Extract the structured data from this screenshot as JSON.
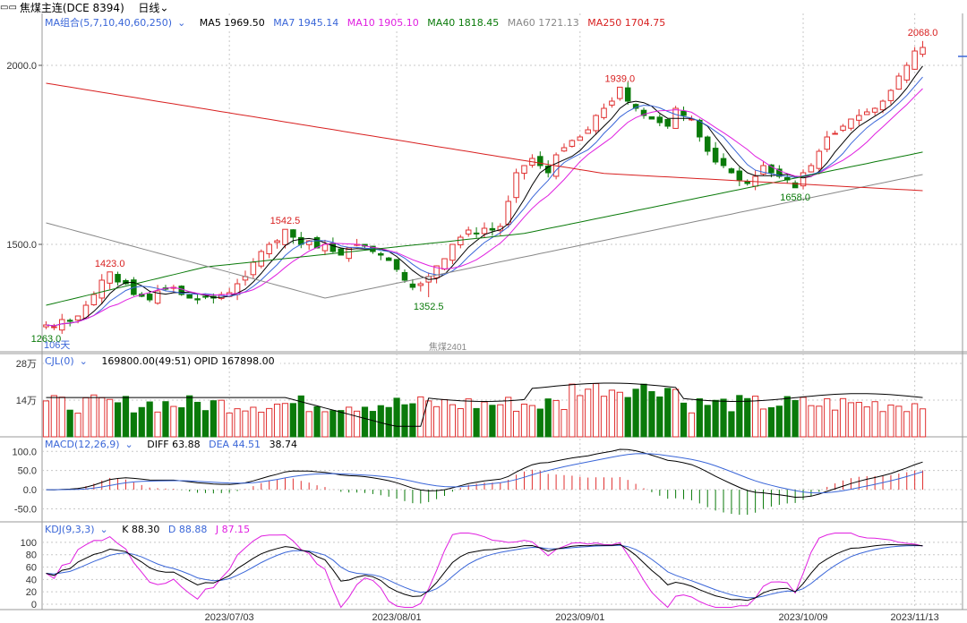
{
  "header": {
    "icon": "link-icon",
    "symbol": "焦煤主连(DCE 8394)",
    "period": "日线"
  },
  "price_panel": {
    "ma_group_label": "MA组合(5,7,10,40,60,250)",
    "ma": [
      {
        "label": "MA5 1969.50",
        "color": "#000000"
      },
      {
        "label": "MA7 1945.14",
        "color": "#3a66d8"
      },
      {
        "label": "MA10 1905.10",
        "color": "#e020e0"
      },
      {
        "label": "MA40 1818.45",
        "color": "#0a7a0a"
      },
      {
        "label": "MA60 1721.13",
        "color": "#888888"
      },
      {
        "label": "MA250 1704.75",
        "color": "#d82020"
      }
    ],
    "y_ticks": [
      "2000.0",
      "1500.0"
    ],
    "annotations": [
      {
        "text": "2068.0",
        "color": "#d82020"
      },
      {
        "text": "1939.0",
        "color": "#d82020"
      },
      {
        "text": "1542.5",
        "color": "#d82020"
      },
      {
        "text": "1423.0",
        "color": "#d82020"
      },
      {
        "text": "1658.0",
        "color": "#0a7a0a"
      },
      {
        "text": "1352.5",
        "color": "#0a7a0a"
      },
      {
        "text": "1263.0",
        "color": "#0a7a0a"
      }
    ],
    "corner_label": "106天",
    "contract_label": "焦煤2401"
  },
  "volume_panel": {
    "title": "CJL(0)",
    "values_text": "169800.00(49:51)  OPID 167898.00",
    "y_ticks": [
      "28万",
      "14万"
    ]
  },
  "macd_panel": {
    "title": "MACD(12,26,9)",
    "diff": "DIFF 63.88",
    "dea": "DEA 44.51",
    "macd": "38.74",
    "y_ticks": [
      "100.0",
      "50.0",
      "0.0",
      "-50.0"
    ]
  },
  "kdj_panel": {
    "title": "KDJ(9,3,3)",
    "k": "K 88.30",
    "d": "D 88.88",
    "j": "J 87.15",
    "y_ticks": [
      "100",
      "80",
      "60",
      "40",
      "20",
      "0"
    ]
  },
  "x_axis": [
    "2023/07/03",
    "2023/08/01",
    "2023/09/01",
    "2023/10/09",
    "2023/11/13"
  ],
  "colors": {
    "up": "#e03030",
    "down": "#0a7a0a",
    "grid": "#c8c8c8",
    "label_blue": "#3a66d8"
  },
  "chart_data": {
    "type": "candlestick",
    "description_source": "estimated from axes",
    "close_series": [
      1275,
      1270,
      1290,
      1285,
      1300,
      1330,
      1360,
      1400,
      1423,
      1395,
      1390,
      1360,
      1355,
      1345,
      1370,
      1375,
      1380,
      1360,
      1350,
      1345,
      1355,
      1350,
      1360,
      1365,
      1390,
      1410,
      1450,
      1480,
      1500,
      1510,
      1542,
      1520,
      1500,
      1510,
      1490,
      1500,
      1480,
      1470,
      1490,
      1500,
      1495,
      1480,
      1470,
      1455,
      1430,
      1400,
      1380,
      1390,
      1410,
      1440,
      1460,
      1500,
      1520,
      1540,
      1530,
      1545,
      1540,
      1550,
      1620,
      1700,
      1720,
      1740,
      1720,
      1700,
      1750,
      1770,
      1790,
      1800,
      1820,
      1860,
      1880,
      1900,
      1939,
      1900,
      1880,
      1860,
      1850,
      1840,
      1830,
      1880,
      1860,
      1850,
      1800,
      1760,
      1730,
      1720,
      1700,
      1680,
      1670,
      1690,
      1720,
      1700,
      1690,
      1680,
      1658,
      1700,
      1720,
      1760,
      1800,
      1810,
      1830,
      1850,
      1860,
      1870,
      1880,
      1900,
      1930,
      1970,
      2000,
      2040,
      2050
    ],
    "ma_last": {
      "MA5": 1969.5,
      "MA7": 1945.14,
      "MA10": 1905.1,
      "MA40": 1818.45,
      "MA60": 1721.13,
      "MA250": 1704.75
    },
    "highs_lows": {
      "high": 2068.0,
      "mid_high": 1939.0,
      "low": 1263.0
    }
  }
}
